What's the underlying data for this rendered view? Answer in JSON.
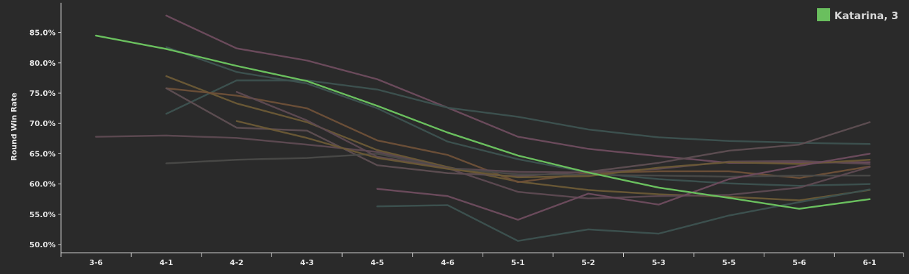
{
  "chart_data": {
    "type": "line",
    "title": "",
    "xlabel": "",
    "ylabel": "Round Win Rate",
    "categories": [
      "3-6",
      "4-1",
      "4-2",
      "4-3",
      "4-5",
      "4-6",
      "5-1",
      "5-2",
      "5-3",
      "5-5",
      "5-6",
      "6-1"
    ],
    "ylim": [
      49.0,
      89.5
    ],
    "yticks": [
      {
        "value": 50,
        "label": "50.0%"
      },
      {
        "value": 55,
        "label": "55.0%"
      },
      {
        "value": 60,
        "label": "60.0%"
      },
      {
        "value": 65,
        "label": "65.0%"
      },
      {
        "value": 70,
        "label": "70.0%"
      },
      {
        "value": 75,
        "label": "75.0%"
      },
      {
        "value": 80,
        "label": "80.0%"
      },
      {
        "value": 85,
        "label": "85.0%"
      }
    ],
    "legend_position": "top-right",
    "legend": [
      {
        "label": "Katarina, 3",
        "color": "#6abf5e"
      }
    ],
    "highlight": {
      "name": "Katarina, 3",
      "color": "#6abf5e",
      "values": [
        84.5,
        82.3,
        79.5,
        77.0,
        72.9,
        68.5,
        64.7,
        61.9,
        59.4,
        57.7,
        55.9,
        57.5
      ]
    },
    "series": [
      {
        "color": "#6e4c5e",
        "values": [
          null,
          87.8,
          82.4,
          80.4,
          77.3,
          72.6,
          67.8,
          65.8,
          64.6,
          63.5,
          63.5,
          63.6
        ]
      },
      {
        "color": "#3d5250",
        "values": [
          null,
          82.6,
          78.5,
          76.6,
          72.5,
          67.0,
          64.1,
          61.9,
          60.8,
          60.1,
          59.7,
          60.0
        ]
      },
      {
        "color": "#3d5250",
        "values": [
          null,
          71.6,
          77.1,
          77.1,
          75.6,
          72.6,
          71.1,
          69.0,
          67.7,
          67.1,
          66.8,
          66.6
        ]
      },
      {
        "color": "#6b5a36",
        "values": [
          null,
          77.8,
          73.3,
          70.2,
          65.6,
          62.8,
          60.4,
          59.0,
          58.3,
          57.9,
          57.3,
          59.0
        ]
      },
      {
        "color": "#6e5038",
        "values": [
          null,
          75.8,
          74.6,
          72.5,
          67.2,
          64.8,
          60.3,
          61.8,
          62.1,
          62.1,
          61.0,
          62.9
        ]
      },
      {
        "color": "#5e4e52",
        "values": [
          null,
          75.8,
          69.3,
          68.8,
          63.1,
          61.8,
          61.3,
          62.0,
          63.5,
          65.5,
          66.5,
          70.2
        ]
      },
      {
        "color": "#5e4a52",
        "values": [
          67.8,
          68.0,
          67.6,
          66.5,
          65.3,
          62.6,
          62.0,
          61.9,
          62.5,
          63.7,
          63.8,
          63.3
        ]
      },
      {
        "color": "#4a4a48",
        "values": [
          null,
          63.4,
          64.0,
          64.3,
          65.0,
          62.6,
          61.6,
          61.5,
          61.4,
          61.2,
          61.4,
          61.4
        ]
      },
      {
        "color": "#5e4a52",
        "values": [
          null,
          null,
          75.2,
          70.5,
          64.5,
          62.6,
          58.7,
          57.6,
          58.0,
          58.2,
          59.4,
          62.8
        ]
      },
      {
        "color": "#6b5a36",
        "values": [
          null,
          null,
          70.4,
          67.6,
          64.3,
          62.5,
          61.1,
          61.3,
          62.7,
          63.6,
          63.3,
          64.0
        ]
      },
      {
        "color": "#6e4c5e",
        "values": [
          null,
          null,
          null,
          null,
          59.2,
          58.0,
          54.1,
          58.4,
          56.6,
          60.8,
          63.0,
          65.0
        ]
      },
      {
        "color": "#3d5250",
        "values": [
          null,
          null,
          null,
          null,
          56.3,
          56.5,
          50.6,
          52.5,
          51.8,
          54.8,
          57.0,
          59.1
        ]
      }
    ]
  }
}
